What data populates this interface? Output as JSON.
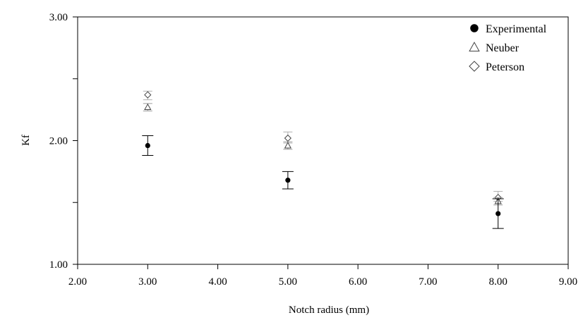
{
  "chart_data": {
    "type": "scatter",
    "title": "",
    "xlabel": "Notch radius (mm)",
    "ylabel": "Kf",
    "xlim": [
      2.0,
      9.0
    ],
    "ylim": [
      1.0,
      3.0
    ],
    "x_ticks": [
      "2.00",
      "3.00",
      "4.00",
      "5.00",
      "6.00",
      "7.00",
      "8.00",
      "9.00"
    ],
    "y_ticks_labeled": [
      "1.00",
      "2.00",
      "3.00"
    ],
    "y_minor_ticks": [
      1.5,
      2.5
    ],
    "grid": false,
    "legend_position": "top-right",
    "x": [
      3.0,
      5.0,
      8.0
    ],
    "series": [
      {
        "name": "Experimental",
        "marker": "filled-circle",
        "color": "#000000",
        "values": [
          1.96,
          1.68,
          1.41
        ],
        "error_low": [
          1.88,
          1.61,
          1.29
        ],
        "error_high": [
          2.04,
          1.75,
          1.53
        ]
      },
      {
        "name": "Neuber",
        "marker": "open-triangle",
        "color": "#444444",
        "values": [
          2.27,
          1.96,
          1.51
        ],
        "error_low": [
          2.24,
          1.93,
          1.48
        ],
        "error_high": [
          2.3,
          1.99,
          1.54
        ]
      },
      {
        "name": "Peterson",
        "marker": "open-diamond",
        "color": "#444444",
        "values": [
          2.37,
          2.02,
          1.54
        ],
        "error_low": [
          2.33,
          1.98,
          1.51
        ],
        "error_high": [
          2.4,
          2.07,
          1.59
        ]
      }
    ]
  }
}
